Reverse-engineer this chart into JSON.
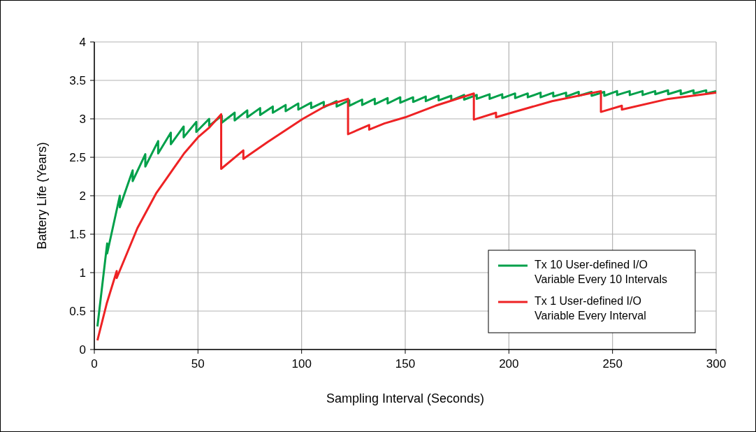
{
  "chart_data": {
    "type": "line",
    "xlabel": "Sampling Interval (Seconds)",
    "ylabel": "Battery Life (Years)",
    "xlim": [
      0,
      300
    ],
    "ylim": [
      0,
      4
    ],
    "xticks": [
      0,
      50,
      100,
      150,
      200,
      250,
      300
    ],
    "yticks": [
      0,
      0.5,
      1,
      1.5,
      2,
      2.5,
      3,
      3.5,
      4
    ],
    "grid": true,
    "legend": "bottom right",
    "marker": "none",
    "line_style": "solid",
    "series": [
      {
        "name": "Tx 10 User-defined I/O Variable Every 10 Intervals",
        "color": "#00a04a",
        "x": [
          1.5,
          6.2,
          6.2,
          12.3,
          12.3,
          18.5,
          18.5,
          24.6,
          24.6,
          30.8,
          30.8,
          36.9,
          36.9,
          43.1,
          43.1,
          49.2,
          49.2,
          55.4,
          55.4,
          61.5,
          61.5,
          67.7,
          67.7,
          73.8,
          73.8,
          80,
          80,
          86.1,
          86.1,
          92.3,
          92.3,
          98.4,
          98.4,
          104.6,
          104.6,
          110.7,
          110.7,
          116.9,
          116.9,
          123,
          123,
          129.2,
          129.2,
          135.3,
          135.3,
          141.5,
          141.5,
          147.6,
          147.6,
          153.8,
          153.8,
          159.9,
          159.9,
          166.1,
          166.1,
          172.2,
          172.2,
          178.4,
          178.4,
          184.5,
          184.5,
          190.7,
          190.7,
          196.8,
          196.8,
          203,
          203,
          209.1,
          209.1,
          215.3,
          215.3,
          221.4,
          221.4,
          227.6,
          227.6,
          233.7,
          233.7,
          239.9,
          239.9,
          246,
          246,
          252.2,
          252.2,
          258.3,
          258.3,
          264.5,
          264.5,
          270.6,
          270.6,
          276.8,
          276.8,
          282.9,
          282.9,
          289.1,
          289.1,
          295.2,
          295.2,
          300
        ],
        "values": [
          0.3,
          1.38,
          1.25,
          2,
          1.85,
          2.33,
          2.19,
          2.54,
          2.38,
          2.71,
          2.55,
          2.82,
          2.67,
          2.9,
          2.76,
          2.96,
          2.83,
          3,
          2.91,
          3.04,
          2.95,
          3.08,
          2.98,
          3.11,
          3.02,
          3.14,
          3.05,
          3.16,
          3.08,
          3.18,
          3.1,
          3.2,
          3.12,
          3.21,
          3.14,
          3.22,
          3.15,
          3.23,
          3.16,
          3.24,
          3.17,
          3.25,
          3.18,
          3.26,
          3.19,
          3.27,
          3.2,
          3.28,
          3.21,
          3.28,
          3.22,
          3.29,
          3.23,
          3.3,
          3.24,
          3.3,
          3.24,
          3.31,
          3.25,
          3.31,
          3.26,
          3.32,
          3.26,
          3.32,
          3.27,
          3.33,
          3.27,
          3.33,
          3.28,
          3.34,
          3.28,
          3.34,
          3.29,
          3.34,
          3.29,
          3.35,
          3.3,
          3.35,
          3.3,
          3.35,
          3.3,
          3.36,
          3.31,
          3.36,
          3.31,
          3.36,
          3.31,
          3.36,
          3.32,
          3.37,
          3.32,
          3.37,
          3.32,
          3.37,
          3.33,
          3.37,
          3.33,
          3.36
        ]
      },
      {
        "name": "Tx 1 User-defined I/O Variable Every Interval",
        "color": "#ee2224",
        "x": [
          1.5,
          6,
          10.8,
          10.8,
          20.8,
          29.8,
          37.6,
          43.3,
          50,
          55.6,
          61.2,
          61.2,
          71.9,
          71.9,
          83.7,
          100.6,
          111.8,
          122.4,
          122.4,
          132.6,
          132.6,
          139.9,
          150,
          164.6,
          183.1,
          183.1,
          193.8,
          193.8,
          203.9,
          220.8,
          244.4,
          244.4,
          254.5,
          254.5,
          277,
          300
        ],
        "values": [
          0.12,
          0.6,
          1.02,
          0.93,
          1.58,
          2.03,
          2.33,
          2.55,
          2.76,
          2.89,
          3.06,
          2.35,
          2.59,
          2.48,
          2.7,
          3,
          3.17,
          3.26,
          2.8,
          2.92,
          2.86,
          2.94,
          3.02,
          3.17,
          3.33,
          2.99,
          3.08,
          3.02,
          3.1,
          3.23,
          3.36,
          3.09,
          3.17,
          3.12,
          3.26,
          3.34
        ]
      }
    ]
  }
}
